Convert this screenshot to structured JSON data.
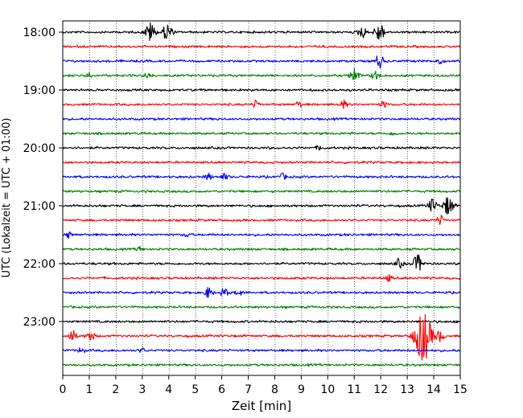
{
  "chart_data": {
    "type": "line",
    "title": "",
    "xlabel": "Zeit  [min]",
    "ylabel": "UTC (Lokalzeit = UTC + 01:00)",
    "xlim": [
      0,
      15
    ],
    "x_ticks": [
      0,
      1,
      2,
      3,
      4,
      5,
      6,
      7,
      8,
      9,
      10,
      11,
      12,
      13,
      14,
      15
    ],
    "y_tick_labels": [
      "18:00",
      "19:00",
      "20:00",
      "21:00",
      "22:00",
      "23:00"
    ],
    "grid": "vertical dotted lines at each minute",
    "trace_colors": [
      "#000000",
      "#ff0000",
      "#0000ff",
      "#008000"
    ],
    "series": [
      {
        "start": "18:00",
        "color": "#000000",
        "events": [
          {
            "t": 3.3,
            "amp": 1.3
          },
          {
            "t": 3.95,
            "amp": 1.2
          },
          {
            "t": 11.3,
            "amp": 0.8
          },
          {
            "t": 11.95,
            "amp": 1.3
          }
        ]
      },
      {
        "start": "18:15",
        "color": "#ff0000",
        "events": []
      },
      {
        "start": "18:30",
        "color": "#0000ff",
        "events": [
          {
            "t": 11.95,
            "amp": 0.9
          },
          {
            "t": 14.2,
            "amp": 0.4
          }
        ]
      },
      {
        "start": "18:45",
        "color": "#008000",
        "events": [
          {
            "t": 1.0,
            "amp": 0.4
          },
          {
            "t": 3.2,
            "amp": 0.4
          },
          {
            "t": 11.0,
            "amp": 1.0
          },
          {
            "t": 11.8,
            "amp": 0.6
          }
        ]
      },
      {
        "start": "19:00",
        "color": "#000000",
        "events": []
      },
      {
        "start": "19:15",
        "color": "#ff0000",
        "events": [
          {
            "t": 7.3,
            "amp": 0.5
          },
          {
            "t": 8.9,
            "amp": 0.4
          },
          {
            "t": 10.6,
            "amp": 0.5
          },
          {
            "t": 12.1,
            "amp": 0.4
          }
        ]
      },
      {
        "start": "19:30",
        "color": "#0000ff",
        "events": []
      },
      {
        "start": "19:45",
        "color": "#008000",
        "events": [
          {
            "t": 12.5,
            "amp": 0.3
          }
        ]
      },
      {
        "start": "20:00",
        "color": "#000000",
        "events": [
          {
            "t": 9.7,
            "amp": 0.3
          }
        ]
      },
      {
        "start": "20:15",
        "color": "#ff0000",
        "events": []
      },
      {
        "start": "20:30",
        "color": "#0000ff",
        "events": [
          {
            "t": 5.5,
            "amp": 0.4
          },
          {
            "t": 6.1,
            "amp": 0.4
          },
          {
            "t": 8.3,
            "amp": 0.4
          }
        ]
      },
      {
        "start": "20:45",
        "color": "#008000",
        "events": []
      },
      {
        "start": "21:00",
        "color": "#000000",
        "events": [
          {
            "t": 13.95,
            "amp": 0.9
          },
          {
            "t": 14.55,
            "amp": 1.3
          }
        ]
      },
      {
        "start": "21:15",
        "color": "#ff0000",
        "events": [
          {
            "t": 14.25,
            "amp": 0.6
          }
        ]
      },
      {
        "start": "21:30",
        "color": "#0000ff",
        "events": [
          {
            "t": 0.2,
            "amp": 0.4
          },
          {
            "t": 4.7,
            "amp": 0.3
          }
        ]
      },
      {
        "start": "21:45",
        "color": "#008000",
        "events": [
          {
            "t": 2.9,
            "amp": 0.3
          }
        ]
      },
      {
        "start": "22:00",
        "color": "#000000",
        "events": [
          {
            "t": 12.7,
            "amp": 0.6
          },
          {
            "t": 13.4,
            "amp": 1.2
          }
        ]
      },
      {
        "start": "22:15",
        "color": "#ff0000",
        "events": [
          {
            "t": 12.3,
            "amp": 0.4
          }
        ]
      },
      {
        "start": "22:30",
        "color": "#0000ff",
        "events": [
          {
            "t": 5.5,
            "amp": 0.7
          },
          {
            "t": 6.1,
            "amp": 0.6
          },
          {
            "t": 6.65,
            "amp": 0.4
          }
        ]
      },
      {
        "start": "22:45",
        "color": "#008000",
        "events": []
      },
      {
        "start": "23:00",
        "color": "#000000",
        "events": []
      },
      {
        "start": "23:15",
        "color": "#ff0000",
        "events": [
          {
            "t": 0.35,
            "amp": 0.8
          },
          {
            "t": 1.05,
            "amp": 0.7
          },
          {
            "t": 13.6,
            "amp": 3.5
          },
          {
            "t": 14.25,
            "amp": 0.7
          }
        ]
      },
      {
        "start": "23:30",
        "color": "#0000ff",
        "events": [
          {
            "t": 0.7,
            "amp": 0.4
          },
          {
            "t": 3.0,
            "amp": 0.3
          }
        ]
      },
      {
        "start": "23:45",
        "color": "#008000",
        "events": []
      }
    ]
  }
}
